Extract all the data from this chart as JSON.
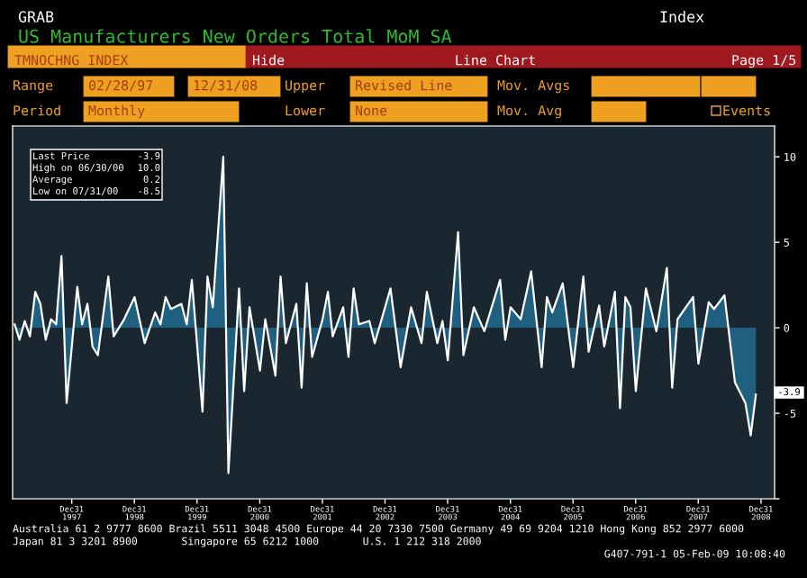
{
  "chart_data": {
    "type": "area",
    "title": "US Manufacturers New Orders Total MoM SA",
    "x": [
      "1997-02",
      "1997-03",
      "1997-04",
      "1997-05",
      "1997-06",
      "1997-07",
      "1997-08",
      "1997-09",
      "1997-10",
      "1997-11",
      "1997-12",
      "1998-02",
      "1998-03",
      "1998-04",
      "1998-05",
      "1998-06",
      "1998-08",
      "1998-09",
      "1998-11",
      "1999-01",
      "1999-03",
      "1999-05",
      "1999-06",
      "1999-07",
      "1999-08",
      "1999-10",
      "1999-11",
      "1999-12",
      "2000-02",
      "2000-03",
      "2000-04",
      "2000-06",
      "2000-07",
      "2000-09",
      "2000-10",
      "2000-11",
      "2001-01",
      "2001-02",
      "2001-04",
      "2001-05",
      "2001-06",
      "2001-08",
      "2001-09",
      "2001-10",
      "2001-11",
      "2002-01",
      "2002-02",
      "2002-03",
      "2002-05",
      "2002-06",
      "2002-07",
      "2002-08",
      "2002-10",
      "2002-11",
      "2003-02",
      "2003-04",
      "2003-06",
      "2003-08",
      "2003-09",
      "2003-11",
      "2003-12",
      "2004-01",
      "2004-03",
      "2004-04",
      "2004-06",
      "2004-08",
      "2004-11",
      "2004-12",
      "2005-01",
      "2005-03",
      "2005-05",
      "2005-07",
      "2005-08",
      "2005-09",
      "2005-11",
      "2006-01",
      "2006-03",
      "2006-04",
      "2006-06",
      "2006-07",
      "2006-09",
      "2006-10",
      "2006-11",
      "2006-12",
      "2007-01",
      "2007-03",
      "2007-05",
      "2007-07",
      "2007-08",
      "2007-09",
      "2007-12",
      "2008-01",
      "2008-03",
      "2008-04",
      "2008-06",
      "2008-08",
      "2008-10",
      "2008-11",
      "2008-12"
    ],
    "series": [
      {
        "color": "#1f5f80",
        "values": [
          0.2,
          -0.7,
          0.4,
          -0.5,
          2.1,
          1.4,
          -0.7,
          0.5,
          0.2,
          4.2,
          -4.4,
          2.4,
          0.2,
          1.4,
          -1.1,
          -1.6,
          3.0,
          -0.5,
          0.5,
          1.8,
          -0.9,
          0.9,
          0.2,
          1.8,
          1.1,
          1.4,
          0.2,
          2.8,
          -4.9,
          3.0,
          1.2,
          10.0,
          -8.5,
          2.3,
          -3.7,
          1.2,
          -2.5,
          0.5,
          -2.8,
          3.0,
          -0.9,
          1.4,
          -3.5,
          2.6,
          -1.7,
          0.5,
          2.1,
          -0.5,
          1.2,
          -1.7,
          2.3,
          0.2,
          0.4,
          -0.9,
          2.3,
          -2.3,
          1.2,
          -0.9,
          2.1,
          -0.9,
          0.4,
          -1.9,
          5.6,
          -1.6,
          1.2,
          -0.2,
          2.8,
          -0.7,
          1.2,
          0.5,
          3.3,
          -2.3,
          1.8,
          0.9,
          2.6,
          -2.3,
          3.0,
          -1.4,
          1.3,
          -1.1,
          2.1,
          -4.7,
          1.8,
          1.2,
          -3.7,
          2.3,
          -0.2,
          3.5,
          -3.5,
          0.5,
          1.8,
          -2.1,
          1.5,
          1.1,
          1.9,
          -3.2,
          -4.4,
          -6.3,
          -3.9
        ]
      }
    ],
    "xlim": [
      "1997-01-20",
      "2009-03-20"
    ],
    "xticks": [
      {
        "value": "1997-12-31",
        "label": "Dec31\n1997"
      },
      {
        "value": "1998-12-31",
        "label": "Dec31\n1998"
      },
      {
        "value": "1999-12-31",
        "label": "Dec31\n1999"
      },
      {
        "value": "2000-12-31",
        "label": "Dec31\n2000"
      },
      {
        "value": "2001-12-31",
        "label": "Dec31\n2001"
      },
      {
        "value": "2002-12-31",
        "label": "Dec31\n2002"
      },
      {
        "value": "2003-12-31",
        "label": "Dec31\n2003"
      },
      {
        "value": "2004-12-31",
        "label": "Dec31\n2004"
      },
      {
        "value": "2005-12-31",
        "label": "Dec31\n2005"
      },
      {
        "value": "2006-12-31",
        "label": "Dec31\n2006"
      },
      {
        "value": "2007-12-31",
        "label": "Dec31\n2007"
      },
      {
        "value": "2008-12-31",
        "label": "Dec31\n2008"
      }
    ],
    "ylim": [
      -10,
      11.8
    ],
    "yticks": [
      -5,
      0,
      5,
      10,
      {
        "value": -10,
        "label": null
      }
    ],
    "annotations": [
      "GRAB",
      "Index",
      "TMNOCHNG INDEX",
      "Hide",
      "Line Chart",
      "Page 1/5",
      "Range",
      "02/28/97",
      "12/31/08",
      "Upper",
      "Revised Line",
      "Mov. Avgs",
      "Period",
      "Monthly",
      "Lower",
      "None",
      "Mov. Avg",
      "Events",
      "Last Price",
      "-3.9",
      "High on 06/30/00",
      "10.0",
      "Average",
      "0.2",
      "Low on 07/31/00",
      "-8.5",
      "-3.9",
      "Australia 61 2 9777 8600 Brazil 5511 3048 4500 Europe 44 20 7330 7500 Germany 49 69 9204 1210 Hong Kong 852 2977 6000",
      "Japan 81 3 3201 8900       Singapore 65 6212 1000       U.S. 1 212 318 2000",
      "G407-791-1 05-Feb-09 10:08:40"
    ]
  }
}
